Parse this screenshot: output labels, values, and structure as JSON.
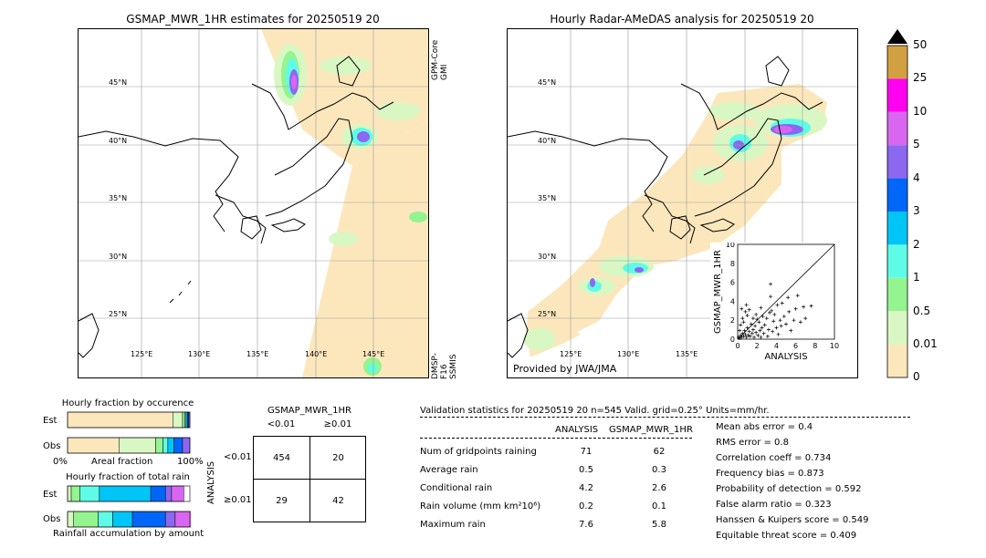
{
  "colors": {
    "c0": "#fce7bd",
    "c1": "#d9f7c3",
    "c2": "#94f48f",
    "c3": "#5efce7",
    "c4": "#00c6f7",
    "c5": "#0066f7",
    "c6": "#8c67f0",
    "c7": "#d966f0",
    "c8": "#ff00f0",
    "c9": "#d2a040",
    "grid": "#9a9a9a"
  },
  "left_map": {
    "title": "GSMAP_MWR_1HR estimates for 20250519 20",
    "side_label_top": "GPM-Core GMI",
    "side_label_bottom": "DMSP-F16 SSMIS",
    "lat_labels": [
      "45°N",
      "40°N",
      "35°N",
      "30°N",
      "25°N"
    ],
    "lon_labels": [
      "125°E",
      "130°E",
      "135°E",
      "140°E",
      "145°E"
    ]
  },
  "right_map": {
    "title": "Hourly Radar-AMeDAS analysis for 20250519 20",
    "credit": "Provided by JWA/JMA",
    "lat_labels": [
      "45°N",
      "40°N",
      "35°N",
      "30°N",
      "25°N"
    ],
    "lon_labels": [
      "125°E",
      "130°E",
      "135°E"
    ]
  },
  "colorbar": {
    "ticks": [
      "50",
      "25",
      "10",
      "5",
      "4",
      "3",
      "2",
      "1",
      "0.5",
      "0.01",
      "0"
    ]
  },
  "chart_data": [
    {
      "type": "scatter",
      "title": "",
      "xlabel": "ANALYSIS",
      "ylabel": "GSMAP_MWR_1HR",
      "xlim": [
        0,
        10
      ],
      "ylim": [
        0,
        10
      ],
      "x_ticks": [
        "0",
        "2",
        "4",
        "6",
        "8",
        "10"
      ],
      "y_ticks": [
        "0",
        "2",
        "4",
        "6",
        "8",
        "10"
      ],
      "points": [
        [
          0.1,
          0.2
        ],
        [
          0.2,
          0.1
        ],
        [
          0.3,
          0.4
        ],
        [
          0.4,
          0.2
        ],
        [
          0.5,
          0.6
        ],
        [
          0.6,
          0.3
        ],
        [
          0.7,
          0.9
        ],
        [
          0.8,
          0.5
        ],
        [
          0.9,
          0.2
        ],
        [
          1.0,
          1.2
        ],
        [
          1.1,
          0.4
        ],
        [
          1.2,
          0.8
        ],
        [
          1.3,
          0.3
        ],
        [
          1.4,
          1.6
        ],
        [
          1.5,
          0.6
        ],
        [
          1.6,
          1.0
        ],
        [
          1.7,
          0.2
        ],
        [
          1.8,
          1.4
        ],
        [
          1.9,
          0.7
        ],
        [
          2.0,
          2.1
        ],
        [
          2.1,
          0.4
        ],
        [
          2.2,
          1.8
        ],
        [
          2.3,
          0.9
        ],
        [
          2.4,
          0.2
        ],
        [
          2.5,
          1.2
        ],
        [
          2.6,
          2.4
        ],
        [
          2.7,
          0.6
        ],
        [
          2.8,
          1.5
        ],
        [
          3.0,
          2.2
        ],
        [
          3.1,
          0.3
        ],
        [
          3.2,
          1.0
        ],
        [
          3.3,
          2.8
        ],
        [
          3.4,
          4.5
        ],
        [
          3.5,
          3.0
        ],
        [
          3.6,
          0.8
        ],
        [
          3.7,
          1.9
        ],
        [
          3.8,
          2.6
        ],
        [
          4.0,
          1.2
        ],
        [
          4.1,
          3.6
        ],
        [
          4.2,
          0.5
        ],
        [
          4.4,
          2.0
        ],
        [
          4.5,
          1.4
        ],
        [
          4.6,
          3.8
        ],
        [
          4.8,
          2.4
        ],
        [
          5.0,
          1.6
        ],
        [
          5.2,
          4.4
        ],
        [
          5.3,
          2.9
        ],
        [
          5.5,
          0.9
        ],
        [
          5.8,
          2.0
        ],
        [
          6.0,
          3.2
        ],
        [
          6.2,
          4.6
        ],
        [
          6.5,
          1.8
        ],
        [
          6.8,
          3.4
        ],
        [
          7.0,
          2.2
        ],
        [
          7.6,
          3.5
        ],
        [
          3.4,
          5.8
        ],
        [
          0.3,
          1.5
        ],
        [
          0.5,
          2.2
        ],
        [
          0.8,
          2.9
        ],
        [
          1.0,
          2.5
        ],
        [
          1.2,
          3.1
        ],
        [
          0.2,
          0.9
        ],
        [
          0.6,
          1.8
        ],
        [
          1.9,
          2.6
        ],
        [
          0.4,
          3.2
        ],
        [
          0.9,
          3.6
        ],
        [
          2.4,
          3.3
        ],
        [
          1.6,
          2.2
        ]
      ],
      "diagonal": true
    },
    {
      "type": "bar",
      "title": "Hourly fraction by occurence",
      "categories": [
        "Est",
        "Obs"
      ],
      "xlabel": "Areal fraction",
      "x_ticks": [
        "0%",
        "100%"
      ],
      "stacked": true,
      "series": [
        {
          "color_key": "c0",
          "values": [
            0.86,
            0.42
          ]
        },
        {
          "color_key": "c1",
          "values": [
            0.08,
            0.3
          ]
        },
        {
          "color_key": "c2",
          "values": [
            0.02,
            0.06
          ]
        },
        {
          "color_key": "c3",
          "values": [
            0.01,
            0.04
          ]
        },
        {
          "color_key": "c4",
          "values": [
            0.01,
            0.05
          ]
        },
        {
          "color_key": "c5",
          "values": [
            0.01,
            0.07
          ]
        },
        {
          "color_key": "c6",
          "values": [
            0.01,
            0.06
          ]
        }
      ]
    },
    {
      "type": "bar",
      "title": "Hourly fraction of total rain",
      "categories": [
        "Est",
        "Obs"
      ],
      "xlabel": "Rainfall accumulation by amount",
      "stacked": true,
      "series": [
        {
          "color_key": "c1",
          "values": [
            0.03,
            0.05
          ]
        },
        {
          "color_key": "c2",
          "values": [
            0.07,
            0.2
          ]
        },
        {
          "color_key": "c3",
          "values": [
            0.16,
            0.12
          ]
        },
        {
          "color_key": "c4",
          "values": [
            0.42,
            0.16
          ]
        },
        {
          "color_key": "c5",
          "values": [
            0.12,
            0.27
          ]
        },
        {
          "color_key": "c6",
          "values": [
            0.05,
            0.08
          ]
        },
        {
          "color_key": "c7",
          "values": [
            0.1,
            0.22
          ]
        }
      ]
    },
    {
      "type": "table",
      "title": "GSMAP_MWR_1HR",
      "col_headers": [
        "<0.01",
        "≥0.01"
      ],
      "row_label": "ANALYSIS",
      "row_headers": [
        "<0.01",
        "≥0.01"
      ],
      "cells": [
        [
          "454",
          "20"
        ],
        [
          "29",
          "42"
        ]
      ]
    }
  ],
  "stats": {
    "header": "Validation statistics for 20250519 20  n=545 Valid. grid=0.25° Units=mm/hr.",
    "col_analysis": "ANALYSIS",
    "col_gsmap": "GSMAP_MWR_1HR",
    "rows": [
      {
        "label": "Num of gridpoints raining",
        "a": "71",
        "g": "62"
      },
      {
        "label": "Average rain",
        "a": "0.5",
        "g": "0.3"
      },
      {
        "label": "Conditional rain",
        "a": "4.2",
        "g": "2.6"
      },
      {
        "label": "Rain volume (mm km²10⁶)",
        "a": "0.2",
        "g": "0.1"
      },
      {
        "label": "Maximum rain",
        "a": "7.6",
        "g": "5.8"
      }
    ],
    "scores": [
      "Mean abs error =    0.4",
      "RMS error =    0.8",
      "Correlation coeff =  0.734",
      "Frequency bias =  0.873",
      "Probability of detection =  0.592",
      "False alarm ratio =  0.323",
      "Hanssen & Kuipers score =  0.549",
      "Equitable threat score =  0.409"
    ]
  }
}
